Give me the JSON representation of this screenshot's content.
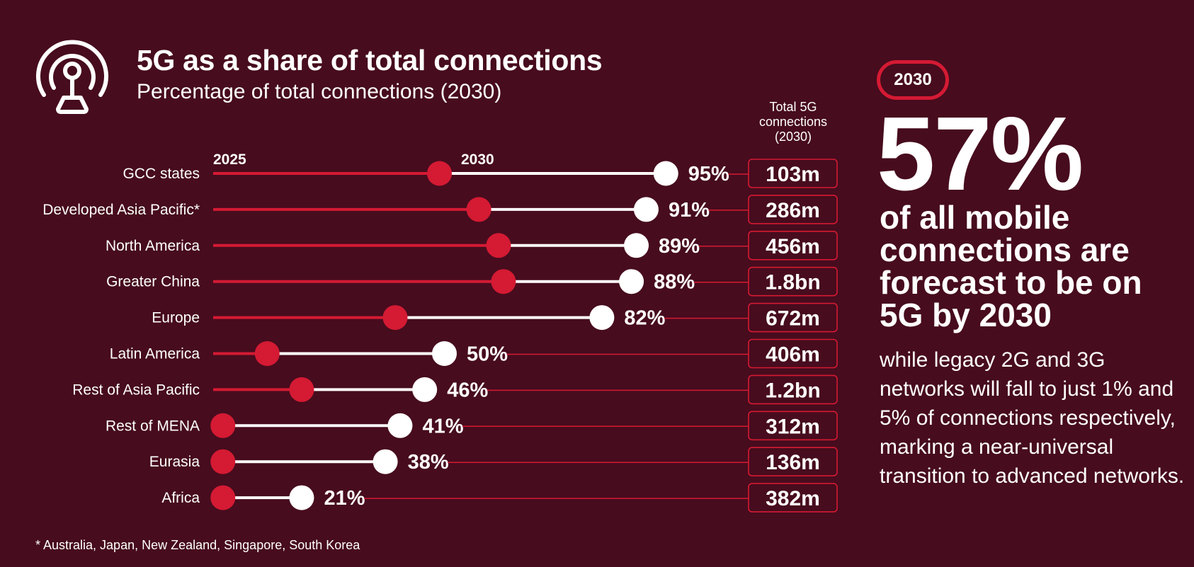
{
  "header": {
    "icon": "broadcast-tower-icon",
    "title": "5G as a share of total connections",
    "subtitle": "Percentage of total connections (2030)"
  },
  "column_header": {
    "line1": "Total 5G",
    "line2": "connections",
    "line3": "(2030)"
  },
  "footnote": "* Australia, Japan, New Zealand, Singapore, South Korea",
  "callout": {
    "year_pill": "2030",
    "big_stat": "57%",
    "headline": "of all mobile connections are forecast to be on 5G by 2030",
    "body": "while legacy 2G and 3G networks will fall to just 1% and 5% of connections respectively, marking a near-universal transition to advanced networks."
  },
  "colors": {
    "background": "#470c1e",
    "accent_red": "#d51a33",
    "white": "#ffffff"
  },
  "chart_data": {
    "type": "dumbbell",
    "title": "5G as a share of total connections",
    "subtitle": "Percentage of total connections (2030)",
    "xlabel": "",
    "ylabel": "",
    "xlim": [
      0,
      100
    ],
    "unit": "%",
    "grid": false,
    "legend": [
      "2025",
      "2030"
    ],
    "legend_placement": "top-left",
    "series": [
      {
        "name": "2025",
        "color": "#d51a33",
        "values": [
          49,
          57,
          61,
          62,
          40,
          14,
          21,
          5,
          5,
          5
        ],
        "note": "estimated from marker positions; last three at axis start"
      },
      {
        "name": "2030",
        "color": "#ffffff",
        "values": [
          95,
          91,
          89,
          88,
          82,
          50,
          46,
          41,
          38,
          21
        ]
      }
    ],
    "categories": [
      "GCC states",
      "Developed Asia Pacific*",
      "North America",
      "Greater China",
      "Europe",
      "Latin America",
      "Rest of Asia Pacific",
      "Rest of MENA",
      "Eurasia",
      "Africa"
    ],
    "value_labels": [
      "95%",
      "91%",
      "89%",
      "88%",
      "82%",
      "50%",
      "46%",
      "41%",
      "38%",
      "21%"
    ],
    "total_connections_header": "Total 5G connections (2030)",
    "total_connections": [
      "103m",
      "286m",
      "456m",
      "1.8bn",
      "672m",
      "406m",
      "1.2bn",
      "312m",
      "136m",
      "382m"
    ]
  }
}
